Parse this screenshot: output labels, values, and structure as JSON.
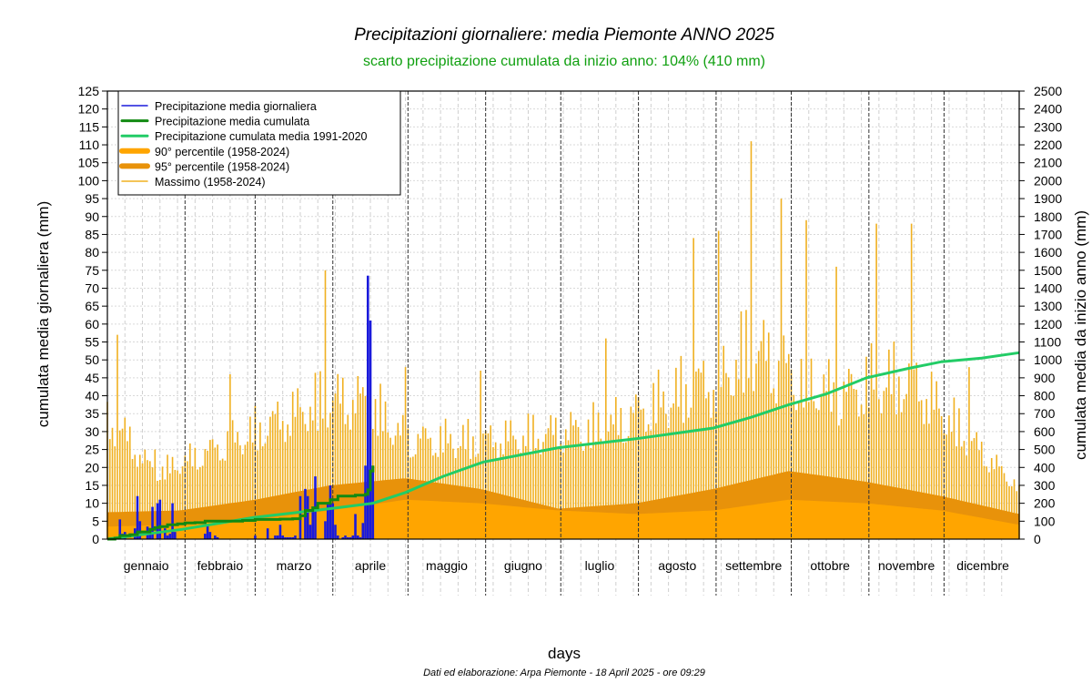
{
  "chart_data": {
    "type": "bar",
    "title": "Precipitazioni giornaliere: media Piemonte ANNO 2025",
    "subtitle": "scarto precipitazione cumulata da inizio anno: 104% (410 mm)",
    "xlabel": "days",
    "ylabel_left": "cumulata media giornaliera (mm)",
    "ylabel_right": "cumulata media da inizio anno (mm)",
    "footer": "Dati ed elaborazione: Arpa Piemonte - 18 April 2025 - ore 09:29",
    "ylim_left": [
      0,
      125
    ],
    "ylim_right": [
      0,
      2500
    ],
    "yticks_left": [
      0,
      5,
      10,
      15,
      20,
      25,
      30,
      35,
      40,
      45,
      50,
      55,
      60,
      65,
      70,
      75,
      80,
      85,
      90,
      95,
      100,
      105,
      110,
      115,
      120,
      125
    ],
    "yticks_right": [
      0,
      100,
      200,
      300,
      400,
      500,
      600,
      700,
      800,
      900,
      1000,
      1100,
      1200,
      1300,
      1400,
      1500,
      1600,
      1700,
      1800,
      1900,
      2000,
      2100,
      2200,
      2300,
      2400,
      2500
    ],
    "months": [
      "gennaio",
      "febbraio",
      "marzo",
      "aprile",
      "maggio",
      "giugno",
      "luglio",
      "agosto",
      "settembre",
      "ottobre",
      "novembre",
      "dicembre"
    ],
    "legend": {
      "position": "top-left",
      "entries": [
        {
          "label": "Precipitazione media giornaliera",
          "color": "#1a1adb",
          "style": "line"
        },
        {
          "label": "Precipitazione media cumulata",
          "color": "#128a12",
          "style": "thick-line"
        },
        {
          "label": "Precipitazione cumulata media 1991-2020",
          "color": "#22cc66",
          "style": "thick-line"
        },
        {
          "label": "90° percentile (1958-2024)",
          "color": "#ffa500",
          "style": "band"
        },
        {
          "label": "95° percentile (1958-2024)",
          "color": "#e8920a",
          "style": "band"
        },
        {
          "label": "Massimo (1958-2024)",
          "color": "#f0b020",
          "style": "line"
        }
      ]
    },
    "colors": {
      "daily": "#1a1adb",
      "cumulative": "#128a12",
      "climatology": "#22cc66",
      "p90": "#ffa500",
      "p95": "#e8920a",
      "max": "#f0b020"
    },
    "series": [
      {
        "name": "Precipitazione media giornaliera",
        "x_day": [
          5,
          6,
          7,
          8,
          12,
          13,
          14,
          17,
          18,
          19,
          21,
          22,
          24,
          25,
          26,
          27,
          28,
          40,
          41,
          42,
          44,
          45,
          60,
          65,
          68,
          69,
          70,
          71,
          72,
          73,
          74,
          75,
          76,
          78,
          80,
          81,
          82,
          83,
          84,
          88,
          89,
          90,
          91,
          92,
          93,
          95,
          96,
          97,
          98,
          99,
          100,
          101,
          102,
          103,
          104,
          105,
          106,
          107
        ],
        "values": [
          0.5,
          5.5,
          1.5,
          2,
          3,
          12,
          5,
          3.5,
          2,
          9,
          10,
          11,
          3,
          1,
          1.5,
          10,
          2,
          1.5,
          4,
          2,
          1,
          0.5,
          1,
          3,
          1,
          1,
          4,
          1,
          0.5,
          0.5,
          0.5,
          0.5,
          1,
          12,
          14,
          12,
          4,
          8,
          17.5,
          5,
          10,
          15,
          10,
          4,
          1,
          0.5,
          1,
          0.5,
          0.5,
          1,
          7,
          1,
          0.5,
          4.5,
          20.5,
          73.5,
          61,
          20
        ]
      },
      {
        "name": "Precipitazione media cumulata",
        "x_day": [
          1,
          4,
          6,
          10,
          13,
          18,
          20,
          22,
          25,
          29,
          32,
          36,
          40,
          45,
          55,
          60,
          65,
          70,
          75,
          78,
          80,
          83,
          85,
          90,
          93,
          95,
          100,
          104,
          105,
          106,
          107
        ],
        "values": [
          0,
          5,
          20,
          25,
          40,
          55,
          65,
          70,
          80,
          85,
          90,
          92,
          100,
          100,
          104,
          110,
          110,
          112,
          114,
          130,
          160,
          175,
          200,
          220,
          240,
          240,
          245,
          250,
          275,
          380,
          410
        ]
      },
      {
        "name": "Precipitazione cumulata media 1991-2020",
        "x_day": [
          1,
          31,
          59,
          90,
          107,
          120,
          135,
          151,
          181,
          212,
          243,
          258,
          273,
          288,
          304,
          320,
          334,
          350,
          365
        ],
        "values": [
          0,
          55,
          120,
          170,
          200,
          260,
          350,
          430,
          510,
          560,
          620,
          680,
          750,
          810,
          900,
          950,
          990,
          1010,
          1040
        ]
      },
      {
        "name": "90° percentile (1958-2024)",
        "x_day": [
          1,
          30,
          60,
          90,
          120,
          150,
          181,
          212,
          243,
          273,
          304,
          334,
          365
        ],
        "values": [
          3.5,
          4,
          5.5,
          8,
          11,
          10,
          8,
          7,
          8,
          11,
          10,
          8,
          4
        ]
      },
      {
        "name": "95° percentile (1958-2024)",
        "x_day": [
          1,
          30,
          60,
          90,
          120,
          150,
          181,
          212,
          243,
          273,
          304,
          334,
          365
        ],
        "values": [
          7.5,
          8,
          11,
          15,
          17,
          14,
          8.5,
          10,
          14,
          19,
          16,
          12,
          7
        ]
      },
      {
        "name": "Massimo (1958-2024)",
        "x_day": [
          5,
          20,
          50,
          88,
          105,
          120,
          150,
          200,
          235,
          245,
          258,
          270,
          280,
          292,
          308,
          322,
          345,
          365
        ],
        "values": [
          57,
          25,
          46,
          75,
          73,
          48,
          47,
          56,
          84,
          86,
          111,
          95,
          89,
          76,
          88,
          88,
          48,
          15
        ]
      }
    ]
  }
}
